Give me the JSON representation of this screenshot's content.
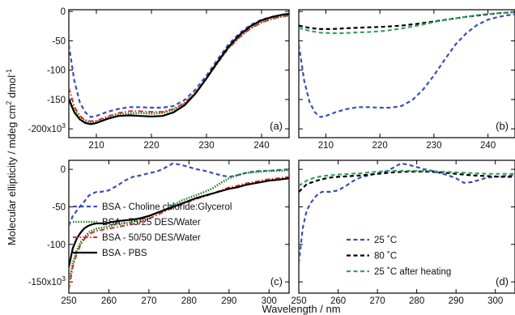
{
  "figure": {
    "ylabel": "Molecular ellipticity / mdeg cm",
    "ylabel_sup1": "2",
    "ylabel_mid": " dmol",
    "ylabel_sup2": "-1",
    "xlabel": "Wavelength / nm"
  },
  "colors": {
    "blue": "#3a4fb5",
    "green_dotted": "#2a8a2a",
    "red": "#d92b2b",
    "black": "#000000",
    "green_dashed": "#3aa060"
  },
  "chart_data": [
    {
      "id": "a",
      "panel_label": "(a)",
      "type": "line",
      "xlim": [
        205,
        245
      ],
      "ylim": [
        -215,
        3
      ],
      "xticks": [
        210,
        220,
        230,
        240
      ],
      "yticks": [
        {
          "value": 0,
          "label": "0"
        },
        {
          "value": -50,
          "label": "-50"
        },
        {
          "value": -100,
          "label": "-100"
        },
        {
          "value": -150,
          "label": "-150"
        },
        {
          "value": -200,
          "label": "-200x10",
          "sup": "3"
        }
      ],
      "series": [
        {
          "style": "blue-dashed",
          "x": [
            205,
            206,
            207,
            208,
            209,
            210,
            212,
            214,
            216,
            218,
            220,
            222,
            224,
            226,
            228,
            230,
            232,
            234,
            236,
            238,
            240,
            242,
            244,
            245
          ],
          "y": [
            -57,
            -118,
            -155,
            -172,
            -180,
            -178,
            -171,
            -166,
            -163,
            -163,
            -164,
            -164,
            -161,
            -151,
            -133,
            -109,
            -82,
            -56,
            -37,
            -23,
            -14,
            -9,
            -6,
            -5
          ]
        },
        {
          "style": "green-dotted",
          "x": [
            205,
            206,
            207,
            208,
            209,
            210,
            212,
            214,
            216,
            218,
            220,
            222,
            224,
            226,
            228,
            230,
            232,
            234,
            236,
            238,
            240,
            242,
            244,
            245
          ],
          "y": [
            -148,
            -168,
            -180,
            -187,
            -189,
            -188,
            -181,
            -176,
            -174,
            -173,
            -174,
            -173,
            -168,
            -157,
            -139,
            -114,
            -87,
            -62,
            -43,
            -28,
            -18,
            -12,
            -8,
            -7
          ]
        },
        {
          "style": "red-dashdot",
          "x": [
            205,
            206,
            207,
            208,
            209,
            210,
            212,
            214,
            216,
            218,
            220,
            222,
            224,
            226,
            228,
            230,
            232,
            234,
            236,
            238,
            240,
            242,
            244,
            245
          ],
          "y": [
            -130,
            -162,
            -178,
            -185,
            -187,
            -186,
            -179,
            -173,
            -170,
            -170,
            -171,
            -171,
            -166,
            -156,
            -138,
            -114,
            -88,
            -63,
            -44,
            -29,
            -19,
            -12,
            -8,
            -7
          ]
        },
        {
          "style": "black-solid",
          "x": [
            205,
            206,
            207,
            208,
            209,
            210,
            212,
            214,
            216,
            218,
            220,
            222,
            224,
            226,
            228,
            230,
            232,
            234,
            236,
            238,
            240,
            242,
            244,
            245
          ],
          "y": [
            -150,
            -172,
            -184,
            -190,
            -192,
            -190,
            -183,
            -178,
            -177,
            -178,
            -179,
            -178,
            -172,
            -160,
            -140,
            -114,
            -86,
            -60,
            -40,
            -25,
            -15,
            -9,
            -5,
            -4
          ]
        }
      ]
    },
    {
      "id": "b",
      "panel_label": "(b)",
      "type": "line",
      "xlim": [
        205,
        245
      ],
      "ylim": [
        -215,
        3
      ],
      "xticks": [
        210,
        220,
        230,
        240
      ],
      "yticks": [
        {
          "value": 0
        },
        {
          "value": -50
        },
        {
          "value": -100
        },
        {
          "value": -150
        },
        {
          "value": -200
        }
      ],
      "series": [
        {
          "style": "blue-dashed",
          "x": [
            205,
            206,
            207,
            208,
            209,
            210,
            212,
            214,
            216,
            218,
            220,
            222,
            224,
            226,
            228,
            230,
            232,
            234,
            236,
            238,
            240,
            242,
            244,
            245
          ],
          "y": [
            -57,
            -118,
            -155,
            -172,
            -180,
            -178,
            -171,
            -166,
            -163,
            -163,
            -164,
            -164,
            -161,
            -151,
            -133,
            -109,
            -82,
            -56,
            -37,
            -23,
            -14,
            -9,
            -6,
            -5
          ]
        },
        {
          "style": "black-dashed",
          "x": [
            205,
            207,
            209,
            211,
            213,
            215,
            218,
            221,
            224,
            227,
            230,
            233,
            236,
            239,
            242,
            245
          ],
          "y": [
            -24,
            -28,
            -30,
            -30,
            -29,
            -28,
            -27,
            -26,
            -24,
            -21,
            -17,
            -13,
            -9,
            -6,
            -3,
            -1
          ]
        },
        {
          "style": "green-dashed",
          "x": [
            205,
            207,
            209,
            211,
            213,
            215,
            218,
            221,
            224,
            227,
            230,
            233,
            236,
            239,
            242,
            245
          ],
          "y": [
            -28,
            -33,
            -36,
            -37,
            -37,
            -36,
            -35,
            -33,
            -29,
            -24,
            -18,
            -13,
            -9,
            -5,
            -3,
            -1
          ]
        }
      ]
    },
    {
      "id": "c",
      "panel_label": "(c)",
      "type": "line",
      "xlim": [
        250,
        305
      ],
      "ylim": [
        -165,
        12
      ],
      "xticks": [
        250,
        260,
        270,
        280,
        290,
        300
      ],
      "yticks": [
        {
          "value": 0,
          "label": "0"
        },
        {
          "value": -50,
          "label": "-50"
        },
        {
          "value": -100,
          "label": "-100"
        },
        {
          "value": -150,
          "label": "-150x10",
          "sup": "3"
        }
      ],
      "series": [
        {
          "name": "BSA - Choline chloride:Glycerol",
          "style": "blue-dashed",
          "x": [
            250,
            251,
            252,
            253,
            254,
            255,
            256,
            257,
            258,
            259,
            260,
            262,
            264,
            266,
            268,
            270,
            272,
            274,
            276,
            278,
            280,
            282,
            284,
            286,
            288,
            290,
            292,
            294,
            296,
            298,
            300,
            302,
            305
          ],
          "y": [
            -75,
            -62,
            -55,
            -48,
            -42,
            -35,
            -32,
            -30,
            -30,
            -29,
            -28,
            -22,
            -15,
            -10,
            -8,
            -5,
            -3,
            2,
            8,
            6,
            3,
            0,
            -2,
            -5,
            -8,
            -10,
            -8,
            -5,
            -3,
            -2,
            -2,
            -1,
            0
          ]
        },
        {
          "name": "BSA - 75/25 DES/Water",
          "style": "green-dotted",
          "x": [
            250,
            251,
            252,
            253,
            254,
            255,
            256,
            257,
            258,
            259,
            260,
            262,
            264,
            266,
            268,
            270,
            272,
            274,
            276,
            278,
            280,
            282,
            284,
            286,
            288,
            290,
            292,
            294,
            296,
            298,
            300,
            302,
            305
          ],
          "y": [
            -150,
            -125,
            -108,
            -97,
            -90,
            -84,
            -81,
            -79,
            -78,
            -77,
            -76,
            -73,
            -72,
            -70,
            -66,
            -63,
            -58,
            -54,
            -48,
            -42,
            -38,
            -34,
            -30,
            -25,
            -18,
            -12,
            -8,
            -5,
            -4,
            -3,
            -2,
            -2,
            -1
          ]
        },
        {
          "name": "BSA - 50/50 DES/Water",
          "style": "red-dashdot",
          "x": [
            250,
            251,
            252,
            253,
            254,
            255,
            256,
            257,
            258,
            259,
            260,
            262,
            264,
            266,
            268,
            270,
            272,
            274,
            276,
            278,
            280,
            282,
            284,
            286,
            288,
            290,
            292,
            294,
            296,
            298,
            300,
            302,
            305
          ],
          "y": [
            -160,
            -130,
            -112,
            -100,
            -92,
            -87,
            -84,
            -82,
            -81,
            -80,
            -79,
            -77,
            -75,
            -73,
            -70,
            -66,
            -61,
            -56,
            -51,
            -47,
            -43,
            -39,
            -36,
            -32,
            -28,
            -24,
            -22,
            -19,
            -17,
            -15,
            -13,
            -12,
            -10
          ]
        },
        {
          "name": "BSA - PBS",
          "style": "black-solid",
          "x": [
            250,
            251,
            252,
            253,
            254,
            255,
            256,
            257,
            258,
            259,
            260,
            262,
            264,
            266,
            268,
            270,
            272,
            274,
            276,
            278,
            280,
            282,
            284,
            286,
            288,
            290,
            292,
            294,
            296,
            298,
            300,
            302,
            305
          ],
          "y": [
            -130,
            -105,
            -92,
            -84,
            -78,
            -75,
            -73,
            -72,
            -72,
            -72,
            -71,
            -69,
            -68,
            -67,
            -65,
            -62,
            -58,
            -54,
            -50,
            -46,
            -42,
            -38,
            -35,
            -32,
            -29,
            -26,
            -24,
            -21,
            -19,
            -17,
            -15,
            -14,
            -12
          ]
        }
      ],
      "legend_position": "lower-left"
    },
    {
      "id": "d",
      "panel_label": "(d)",
      "type": "line",
      "xlim": [
        250,
        305
      ],
      "ylim": [
        -165,
        12
      ],
      "xticks": [
        250,
        260,
        270,
        280,
        290,
        300
      ],
      "yticks": [
        {
          "value": 0
        },
        {
          "value": -50
        },
        {
          "value": -100
        },
        {
          "value": -150
        }
      ],
      "series": [
        {
          "name": "25 ˚C",
          "style": "blue-dashed",
          "x": [
            250,
            251,
            252,
            253,
            254,
            255,
            256,
            257,
            258,
            259,
            260,
            262,
            264,
            266,
            268,
            270,
            272,
            274,
            276,
            278,
            280,
            282,
            284,
            286,
            288,
            290,
            292,
            294,
            296,
            298,
            300,
            302,
            305
          ],
          "y": [
            -125,
            -78,
            -55,
            -45,
            -38,
            -32,
            -30,
            -30,
            -30,
            -29,
            -28,
            -22,
            -15,
            -10,
            -8,
            -5,
            -3,
            2,
            8,
            6,
            3,
            0,
            -2,
            -5,
            -8,
            -12,
            -18,
            -17,
            -14,
            -11,
            -10,
            -9,
            -8
          ]
        },
        {
          "name": "80 ˚C",
          "style": "black-dashed",
          "x": [
            250,
            252,
            254,
            256,
            258,
            260,
            263,
            266,
            270,
            274,
            278,
            282,
            286,
            290,
            294,
            298,
            302,
            305
          ],
          "y": [
            -30,
            -20,
            -16,
            -13,
            -11,
            -10,
            -9,
            -8,
            -6,
            -4,
            -3,
            -3,
            -4,
            -6,
            -8,
            -9,
            -10,
            -10
          ]
        },
        {
          "name": "25 ˚C after heating",
          "style": "green-dashed",
          "x": [
            250,
            252,
            254,
            256,
            258,
            260,
            263,
            266,
            270,
            274,
            278,
            282,
            286,
            290,
            294,
            298,
            302,
            305
          ],
          "y": [
            -22,
            -15,
            -11,
            -9,
            -8,
            -7,
            -6,
            -5,
            -3,
            -2,
            -2,
            -2,
            -3,
            -4,
            -5,
            -6,
            -6,
            -6
          ]
        }
      ],
      "legend_position": "lower-left"
    }
  ]
}
